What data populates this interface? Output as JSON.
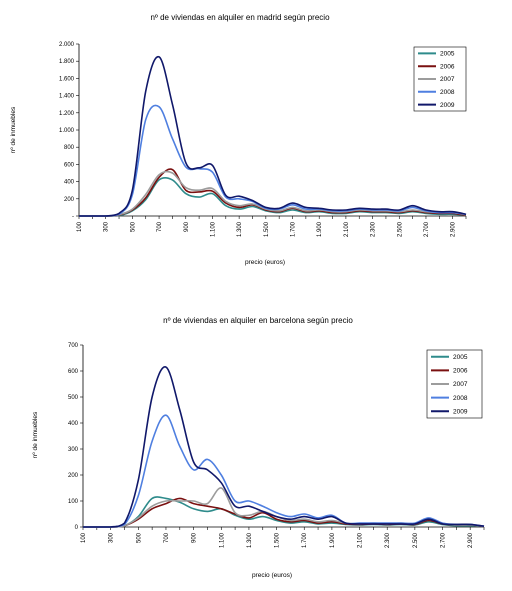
{
  "colors": {
    "2005": "#2e8b8b",
    "2006": "#7a1010",
    "2007": "#9c9c9c",
    "2008": "#4f7fe0",
    "2009": "#10186a"
  },
  "chart_data": [
    {
      "type": "line",
      "title": "nº de viviendas en alquiler en madrid según precio",
      "xlabel": "precio (euros)",
      "ylabel": "nº de inmuebles",
      "y_ticks": [
        "-",
        "200",
        "400",
        "600",
        "800",
        "1.000",
        "1.200",
        "1.400",
        "1.600",
        "1.800",
        "2.000"
      ],
      "ylim": [
        0,
        2000
      ],
      "x_ticks": [
        "100",
        "300",
        "500",
        "700",
        "900",
        "1.100",
        "1.300",
        "1.500",
        "1.700",
        "1.900",
        "2.100",
        "2.300",
        "2.500",
        "2.700",
        "2.900"
      ],
      "x": [
        100,
        200,
        300,
        400,
        500,
        600,
        700,
        800,
        900,
        1000,
        1100,
        1200,
        1300,
        1400,
        1500,
        1600,
        1700,
        1800,
        1900,
        2000,
        2100,
        2200,
        2300,
        2400,
        2500,
        2600,
        2700,
        2800,
        2900,
        3000
      ],
      "xlim": [
        100,
        3000
      ],
      "legend": "top-right",
      "series": [
        {
          "name": "2005",
          "values": [
            0,
            0,
            0,
            5,
            60,
            190,
            420,
            420,
            260,
            220,
            260,
            120,
            80,
            110,
            60,
            40,
            70,
            40,
            50,
            30,
            30,
            50,
            40,
            40,
            30,
            50,
            30,
            20,
            20,
            10
          ]
        },
        {
          "name": "2006",
          "values": [
            0,
            0,
            0,
            10,
            70,
            210,
            450,
            540,
            300,
            280,
            290,
            150,
            100,
            130,
            70,
            50,
            90,
            50,
            60,
            40,
            40,
            60,
            50,
            50,
            40,
            60,
            40,
            30,
            30,
            10
          ]
        },
        {
          "name": "2007",
          "values": [
            0,
            0,
            0,
            15,
            80,
            250,
            480,
            500,
            330,
            300,
            320,
            170,
            120,
            140,
            80,
            60,
            100,
            60,
            70,
            50,
            50,
            70,
            60,
            60,
            50,
            70,
            50,
            40,
            40,
            15
          ]
        },
        {
          "name": "2008",
          "values": [
            0,
            0,
            0,
            20,
            250,
            1120,
            1270,
            900,
            570,
            550,
            510,
            220,
            200,
            170,
            90,
            80,
            130,
            80,
            80,
            60,
            60,
            80,
            70,
            70,
            60,
            100,
            60,
            40,
            40,
            20
          ]
        },
        {
          "name": "2009",
          "values": [
            0,
            0,
            0,
            30,
            300,
            1450,
            1850,
            1300,
            620,
            560,
            590,
            240,
            230,
            180,
            100,
            90,
            150,
            100,
            90,
            70,
            70,
            90,
            80,
            80,
            70,
            120,
            70,
            50,
            50,
            20
          ]
        }
      ]
    },
    {
      "type": "line",
      "title": "nº de viviendas en alquiler en barcelona según precio",
      "xlabel": "precio (euros)",
      "ylabel": "nº de inmuebles",
      "y_ticks": [
        "0",
        "100",
        "200",
        "300",
        "400",
        "500",
        "600",
        "700"
      ],
      "ylim": [
        0,
        700
      ],
      "x_ticks": [
        "100",
        "300",
        "500",
        "700",
        "900",
        "1.100",
        "1.300",
        "1.500",
        "1.700",
        "1.900",
        "2.100",
        "2.300",
        "2.500",
        "2.700",
        "2.900"
      ],
      "x": [
        100,
        200,
        300,
        400,
        500,
        600,
        700,
        800,
        900,
        1000,
        1100,
        1200,
        1300,
        1400,
        1500,
        1600,
        1700,
        1800,
        1900,
        2000,
        2100,
        2200,
        2300,
        2400,
        2500,
        2600,
        2700,
        2800,
        2900,
        3000
      ],
      "xlim": [
        100,
        3000
      ],
      "legend": "top-right",
      "series": [
        {
          "name": "2005",
          "values": [
            0,
            0,
            0,
            5,
            40,
            110,
            110,
            95,
            70,
            60,
            70,
            45,
            30,
            40,
            25,
            15,
            20,
            12,
            15,
            10,
            8,
            10,
            8,
            10,
            8,
            20,
            10,
            5,
            5,
            2
          ]
        },
        {
          "name": "2006",
          "values": [
            0,
            0,
            0,
            5,
            30,
            70,
            90,
            110,
            90,
            80,
            70,
            50,
            35,
            55,
            30,
            20,
            25,
            15,
            20,
            12,
            10,
            12,
            10,
            12,
            10,
            25,
            12,
            8,
            8,
            2
          ]
        },
        {
          "name": "2007",
          "values": [
            0,
            0,
            0,
            5,
            35,
            80,
            100,
            100,
            100,
            90,
            150,
            55,
            45,
            60,
            40,
            25,
            30,
            20,
            25,
            15,
            12,
            15,
            12,
            15,
            12,
            30,
            15,
            8,
            8,
            3
          ]
        },
        {
          "name": "2008",
          "values": [
            0,
            0,
            0,
            10,
            120,
            330,
            430,
            310,
            220,
            260,
            200,
            100,
            100,
            80,
            55,
            40,
            50,
            35,
            45,
            15,
            15,
            15,
            15,
            15,
            15,
            35,
            15,
            10,
            10,
            3
          ]
        },
        {
          "name": "2009",
          "values": [
            0,
            0,
            0,
            15,
            180,
            500,
            615,
            450,
            250,
            220,
            170,
            80,
            80,
            60,
            40,
            30,
            40,
            30,
            40,
            15,
            12,
            12,
            12,
            12,
            12,
            30,
            12,
            10,
            10,
            3
          ]
        }
      ]
    }
  ]
}
